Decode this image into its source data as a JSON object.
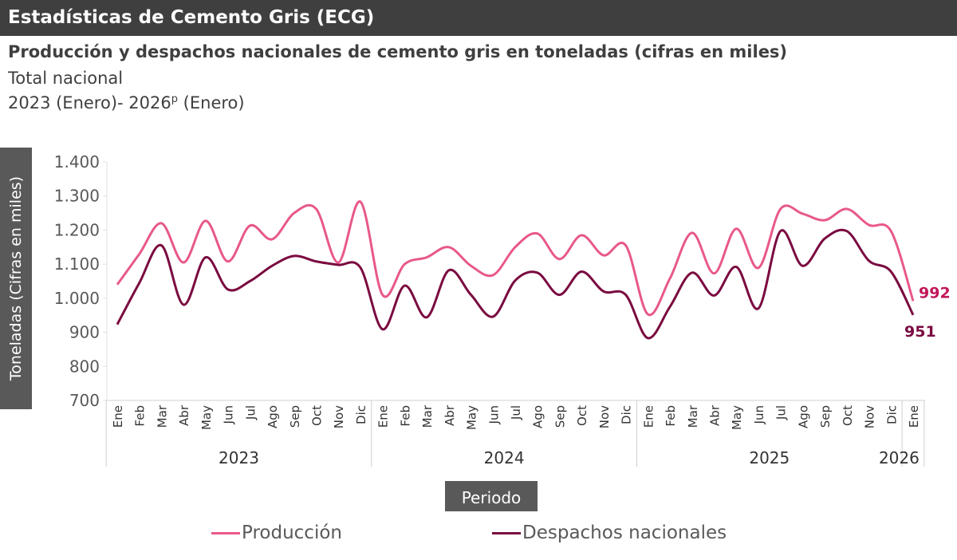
{
  "header": {
    "title": "Estadísticas de Cemento Gris (ECG)"
  },
  "subtitle": "Producción y despachos nacionales de cemento gris en toneladas (cifras en miles)",
  "scope": "Total nacional",
  "period_prefix": "2023 (Enero)- 2026",
  "period_sup": "p",
  "period_suffix": " (Enero)",
  "chart_data": {
    "type": "line",
    "xlabel": "Periodo",
    "ylabel": "Toneladas (Cifras en miles)",
    "ylim": [
      700,
      1400
    ],
    "yticks": [
      "700",
      "800",
      "900",
      "1.000",
      "1.100",
      "1.200",
      "1.300",
      "1.400"
    ],
    "ytick_values": [
      700,
      800,
      900,
      1000,
      1100,
      1200,
      1300,
      1400
    ],
    "years": [
      {
        "label": "2023",
        "months": 12
      },
      {
        "label": "2024",
        "months": 12
      },
      {
        "label": "2025",
        "months": 12
      },
      {
        "label": "2026",
        "months": 1
      }
    ],
    "categories": [
      "Ene",
      "Feb",
      "Mar",
      "Abr",
      "May",
      "Jun",
      "Jul",
      "Ago",
      "Sep",
      "Oct",
      "Nov",
      "Dic",
      "Ene",
      "Feb",
      "Mar",
      "Abr",
      "May",
      "Jun",
      "Jul",
      "Ago",
      "Sep",
      "Oct",
      "Nov",
      "Dic",
      "Ene",
      "Feb",
      "Mar",
      "Abr",
      "May",
      "Jun",
      "Jul",
      "Ago",
      "Sep",
      "Oct",
      "Nov",
      "Dic",
      "Ene"
    ],
    "legend_position": "bottom",
    "grid": false,
    "series": [
      {
        "name": "Producción",
        "color": "#e8588a",
        "end_label": "992",
        "values": [
          1040,
          1130,
          1220,
          1105,
          1227,
          1108,
          1213,
          1173,
          1250,
          1262,
          1105,
          1283,
          1010,
          1100,
          1120,
          1150,
          1095,
          1068,
          1150,
          1190,
          1115,
          1185,
          1126,
          1155,
          953,
          1058,
          1192,
          1073,
          1204,
          1089,
          1262,
          1248,
          1229,
          1262,
          1215,
          1197,
          992
        ]
      },
      {
        "name": "Despachos nacionales",
        "color": "#7a0a40",
        "end_label": "951",
        "values": [
          923,
          1045,
          1155,
          981,
          1120,
          1026,
          1050,
          1095,
          1124,
          1108,
          1098,
          1090,
          909,
          1037,
          944,
          1082,
          1010,
          946,
          1052,
          1075,
          1010,
          1078,
          1020,
          1010,
          883,
          975,
          1075,
          1008,
          1092,
          970,
          1197,
          1095,
          1175,
          1197,
          1110,
          1078,
          951
        ]
      }
    ]
  }
}
